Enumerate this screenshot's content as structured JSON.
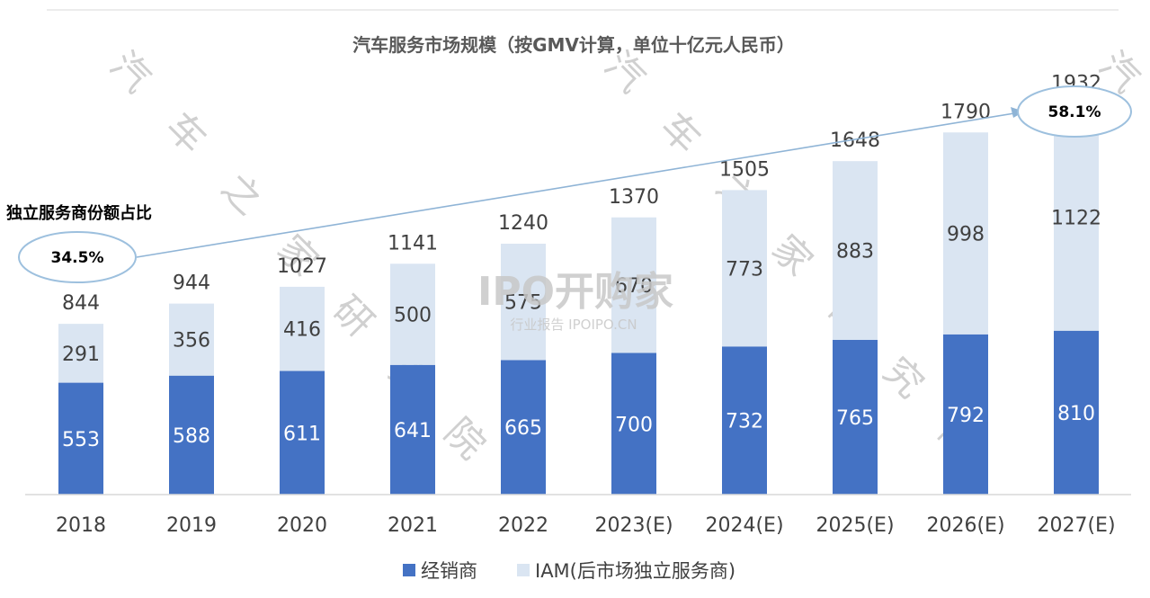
{
  "chart_data": {
    "type": "bar",
    "stacked": true,
    "title": "汽车服务市场规模（按GMV计算，单位十亿元人民币）",
    "categories": [
      "2018",
      "2019",
      "2020",
      "2021",
      "2022",
      "2023(E)",
      "2024(E)",
      "2025(E)",
      "2026(E)",
      "2027(E)"
    ],
    "series": [
      {
        "name": "经销商",
        "color": "#4472c4",
        "values": [
          553,
          588,
          611,
          641,
          665,
          700,
          732,
          765,
          792,
          810
        ]
      },
      {
        "name": "IAM(后市场独立服务商)",
        "color": "#dae5f2",
        "values": [
          291,
          356,
          416,
          500,
          575,
          670,
          773,
          883,
          998,
          1122
        ]
      }
    ],
    "totals": [
      844,
      944,
      1027,
      1141,
      1240,
      1370,
      1505,
      1648,
      1790,
      1932
    ],
    "ylim": [
      0,
      2200
    ],
    "grid": false,
    "legend_position": "bottom",
    "annotation": {
      "label": "独立服务商份额占比",
      "start_value": "34.5%",
      "end_value": "58.1%"
    }
  },
  "watermarks": {
    "diagonal_chars": [
      "汽",
      "车",
      "之",
      "家",
      "研",
      "究",
      "院"
    ],
    "brand_main": "IPO开购家",
    "brand_sub": "行业报告 IPOIPO.CN"
  }
}
